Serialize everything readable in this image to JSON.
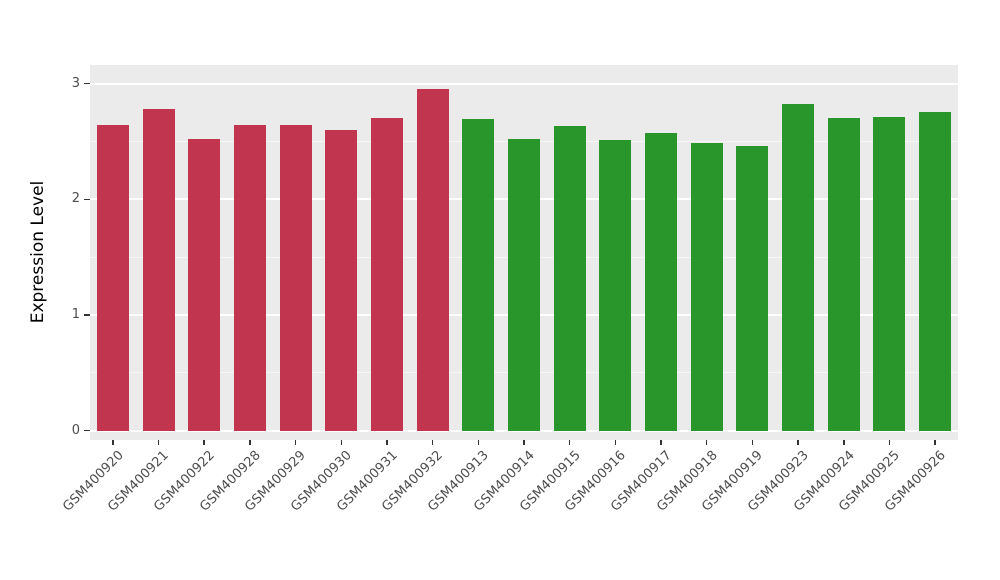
{
  "chart_data": {
    "type": "bar",
    "title": "",
    "xlabel": "",
    "ylabel": "Expression Level",
    "ylim": [
      0,
      3
    ],
    "yticks_major": [
      0,
      1,
      2,
      3
    ],
    "yticks_minor": [
      0.5,
      1.5,
      2.5
    ],
    "grid": true,
    "legend": "none",
    "panel_bg": "#EBEBEB",
    "grid_color": "#FFFFFF",
    "categories": [
      "GSM400920",
      "GSM400921",
      "GSM400922",
      "GSM400928",
      "GSM400929",
      "GSM400930",
      "GSM400931",
      "GSM400932",
      "GSM400913",
      "GSM400914",
      "GSM400915",
      "GSM400916",
      "GSM400917",
      "GSM400918",
      "GSM400919",
      "GSM400923",
      "GSM400924",
      "GSM400925",
      "GSM400926"
    ],
    "values": [
      2.64,
      2.78,
      2.52,
      2.64,
      2.64,
      2.6,
      2.7,
      2.95,
      2.69,
      2.52,
      2.63,
      2.51,
      2.57,
      2.49,
      2.46,
      2.82,
      2.7,
      2.71,
      2.75
    ],
    "bar_groups": [
      {
        "name": "group-red",
        "color": "#C2354F",
        "count": 8
      },
      {
        "name": "group-green",
        "color": "#28962B",
        "count": 11
      }
    ]
  }
}
